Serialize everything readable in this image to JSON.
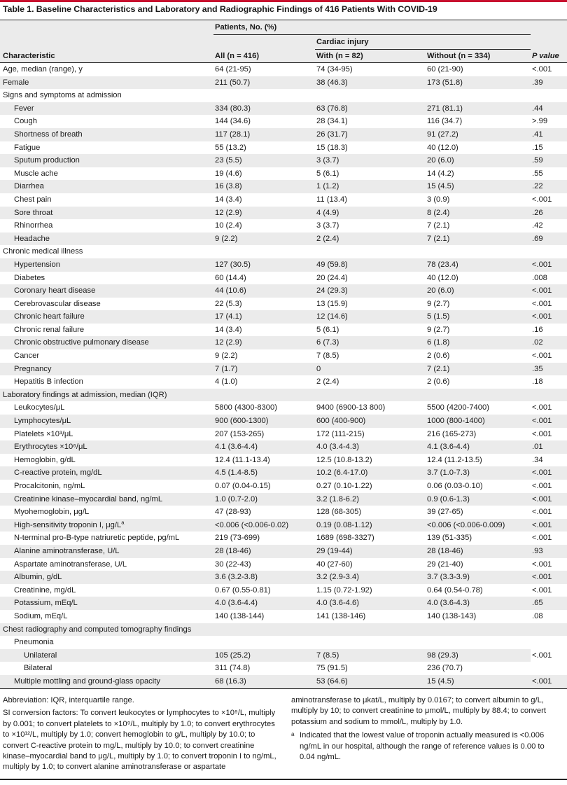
{
  "title": "Table 1. Baseline Characteristics and Laboratory and Radiographic Findings of 416 Patients With COVID-19",
  "header": {
    "patients": "Patients, No. (%)",
    "cardiac": "Cardiac injury",
    "characteristic": "Characteristic",
    "all": "All (n = 416)",
    "with": "With (n = 82)",
    "without": "Without (n = 334)",
    "p": "P value"
  },
  "rows": [
    {
      "label": "Age, median (range), y",
      "all": "64 (21-95)",
      "with": "74 (34-95)",
      "without": "60 (21-90)",
      "p": "<.001",
      "level": 0
    },
    {
      "label": "Female",
      "all": "211 (50.7)",
      "with": "38 (46.3)",
      "without": "173 (51.8)",
      "p": ".39",
      "level": 0
    },
    {
      "label": "Signs and symptoms at admission",
      "all": "",
      "with": "",
      "without": "",
      "p": "",
      "level": 0
    },
    {
      "label": "Fever",
      "all": "334 (80.3)",
      "with": "63 (76.8)",
      "without": "271 (81.1)",
      "p": ".44",
      "level": 1
    },
    {
      "label": "Cough",
      "all": "144 (34.6)",
      "with": "28 (34.1)",
      "without": "116 (34.7)",
      "p": ">.99",
      "level": 1
    },
    {
      "label": "Shortness of breath",
      "all": "117 (28.1)",
      "with": "26 (31.7)",
      "without": "91 (27.2)",
      "p": ".41",
      "level": 1
    },
    {
      "label": "Fatigue",
      "all": "55 (13.2)",
      "with": "15 (18.3)",
      "without": "40 (12.0)",
      "p": ".15",
      "level": 1
    },
    {
      "label": "Sputum production",
      "all": "23 (5.5)",
      "with": "3 (3.7)",
      "without": "20 (6.0)",
      "p": ".59",
      "level": 1
    },
    {
      "label": "Muscle ache",
      "all": "19 (4.6)",
      "with": "5 (6.1)",
      "without": "14 (4.2)",
      "p": ".55",
      "level": 1
    },
    {
      "label": "Diarrhea",
      "all": "16 (3.8)",
      "with": "1 (1.2)",
      "without": "15 (4.5)",
      "p": ".22",
      "level": 1
    },
    {
      "label": "Chest pain",
      "all": "14 (3.4)",
      "with": "11 (13.4)",
      "without": "3 (0.9)",
      "p": "<.001",
      "level": 1
    },
    {
      "label": "Sore throat",
      "all": "12 (2.9)",
      "with": "4 (4.9)",
      "without": "8 (2.4)",
      "p": ".26",
      "level": 1
    },
    {
      "label": "Rhinorrhea",
      "all": "10 (2.4)",
      "with": "3 (3.7)",
      "without": "7 (2.1)",
      "p": ".42",
      "level": 1
    },
    {
      "label": "Headache",
      "all": "9 (2.2)",
      "with": "2 (2.4)",
      "without": "7 (2.1)",
      "p": ".69",
      "level": 1
    },
    {
      "label": "Chronic medical illness",
      "all": "",
      "with": "",
      "without": "",
      "p": "",
      "level": 0
    },
    {
      "label": "Hypertension",
      "all": "127 (30.5)",
      "with": "49 (59.8)",
      "without": "78 (23.4)",
      "p": "<.001",
      "level": 1
    },
    {
      "label": "Diabetes",
      "all": "60 (14.4)",
      "with": "20 (24.4)",
      "without": "40 (12.0)",
      "p": ".008",
      "level": 1
    },
    {
      "label": "Coronary heart disease",
      "all": "44 (10.6)",
      "with": "24 (29.3)",
      "without": "20 (6.0)",
      "p": "<.001",
      "level": 1
    },
    {
      "label": "Cerebrovascular disease",
      "all": "22 (5.3)",
      "with": "13 (15.9)",
      "without": "9 (2.7)",
      "p": "<.001",
      "level": 1
    },
    {
      "label": "Chronic heart failure",
      "all": "17 (4.1)",
      "with": "12 (14.6)",
      "without": "5 (1.5)",
      "p": "<.001",
      "level": 1
    },
    {
      "label": "Chronic renal failure",
      "all": "14 (3.4)",
      "with": "5 (6.1)",
      "without": "9 (2.7)",
      "p": ".16",
      "level": 1
    },
    {
      "label": "Chronic obstructive pulmonary disease",
      "all": "12 (2.9)",
      "with": "6 (7.3)",
      "without": "6 (1.8)",
      "p": ".02",
      "level": 1
    },
    {
      "label": "Cancer",
      "all": "9 (2.2)",
      "with": "7 (8.5)",
      "without": "2 (0.6)",
      "p": "<.001",
      "level": 1
    },
    {
      "label": "Pregnancy",
      "all": "7 (1.7)",
      "with": "0",
      "without": "7 (2.1)",
      "p": ".35",
      "level": 1
    },
    {
      "label": "Hepatitis B infection",
      "all": "4 (1.0)",
      "with": "2 (2.4)",
      "without": "2 (0.6)",
      "p": ".18",
      "level": 1
    },
    {
      "label": "Laboratory findings at admission, median (IQR)",
      "all": "",
      "with": "",
      "without": "",
      "p": "",
      "level": 0
    },
    {
      "label": "Leukocytes/μL",
      "all": "5800 (4300-8300)",
      "with": "9400 (6900-13 800)",
      "without": "5500 (4200-7400)",
      "p": "<.001",
      "level": 1
    },
    {
      "label": "Lymphocytes/μL",
      "all": "900 (600-1300)",
      "with": "600 (400-900)",
      "without": "1000 (800-1400)",
      "p": "<.001",
      "level": 1
    },
    {
      "label": "Platelets ×10³/μL",
      "all": "207 (153-265)",
      "with": "172 (111-215)",
      "without": "216 (165-273)",
      "p": "<.001",
      "level": 1
    },
    {
      "label": "Erythrocytes ×10⁶/μL",
      "all": "4.1 (3.6-4.4)",
      "with": "4.0 (3.4-4.3)",
      "without": "4.1 (3.6-4.4)",
      "p": ".01",
      "level": 1
    },
    {
      "label": "Hemoglobin, g/dL",
      "all": "12.4 (11.1-13.4)",
      "with": "12.5 (10.8-13.2)",
      "without": "12.4 (11.2-13.5)",
      "p": ".34",
      "level": 1
    },
    {
      "label": "C-reactive protein, mg/dL",
      "all": "4.5 (1.4-8.5)",
      "with": "10.2 (6.4-17.0)",
      "without": "3.7 (1.0-7.3)",
      "p": "<.001",
      "level": 1
    },
    {
      "label": "Procalcitonin, ng/mL",
      "all": "0.07 (0.04-0.15)",
      "with": "0.27 (0.10-1.22)",
      "without": "0.06 (0.03-0.10)",
      "p": "<.001",
      "level": 1
    },
    {
      "label": "Creatinine kinase–myocardial band, ng/mL",
      "all": "1.0 (0.7-2.0)",
      "with": "3.2 (1.8-6.2)",
      "without": "0.9 (0.6-1.3)",
      "p": "<.001",
      "level": 1
    },
    {
      "label": "Myohemoglobin, μg/L",
      "all": "47 (28-93)",
      "with": "128 (68-305)",
      "without": "39 (27-65)",
      "p": "<.001",
      "level": 1
    },
    {
      "label": "High-sensitivity troponin I, μg/L",
      "all": "<0.006 (<0.006-0.02)",
      "with": "0.19 (0.08-1.12)",
      "without": "<0.006 (<0.006-0.009)",
      "p": "<.001",
      "level": 1,
      "sup": "a"
    },
    {
      "label": "N-terminal pro-B-type natriuretic peptide, pg/mL",
      "all": "219 (73-699)",
      "with": "1689 (698-3327)",
      "without": "139 (51-335)",
      "p": "<.001",
      "level": 1
    },
    {
      "label": "Alanine aminotransferase, U/L",
      "all": "28 (18-46)",
      "with": "29 (19-44)",
      "without": "28 (18-46)",
      "p": ".93",
      "level": 1
    },
    {
      "label": "Aspartate aminotransferase, U/L",
      "all": "30 (22-43)",
      "with": "40 (27-60)",
      "without": "29 (21-40)",
      "p": "<.001",
      "level": 1
    },
    {
      "label": "Albumin, g/dL",
      "all": "3.6 (3.2-3.8)",
      "with": "3.2 (2.9-3.4)",
      "without": "3.7 (3.3-3.9)",
      "p": "<.001",
      "level": 1
    },
    {
      "label": "Creatinine, mg/dL",
      "all": "0.67 (0.55-0.81)",
      "with": "1.15 (0.72-1.92)",
      "without": "0.64 (0.54-0.78)",
      "p": "<.001",
      "level": 1
    },
    {
      "label": "Potassium, mEq/L",
      "all": "4.0 (3.6-4.4)",
      "with": "4.0 (3.6-4.6)",
      "without": "4.0 (3.6-4.3)",
      "p": ".65",
      "level": 1
    },
    {
      "label": "Sodium, mEq/L",
      "all": "140 (138-144)",
      "with": "141 (138-146)",
      "without": "140 (138-143)",
      "p": ".08",
      "level": 1
    },
    {
      "label": "Chest radiography and computed tomography findings",
      "all": "",
      "with": "",
      "without": "",
      "p": "",
      "level": 0
    }
  ],
  "pneumonia": {
    "label": "Pneumonia",
    "unilateral": {
      "label": "Unilateral",
      "all": "105 (25.2)",
      "with": "7 (8.5)",
      "without": "98 (29.3)"
    },
    "bilateral": {
      "label": "Bilateral",
      "all": "311 (74.8)",
      "with": "75 (91.5)",
      "without": "236 (70.7)"
    },
    "p": "<.001"
  },
  "mottling": {
    "label": "Multiple mottling and ground-glass opacity",
    "all": "68 (16.3)",
    "with": "53 (64.6)",
    "without": "15 (4.5)",
    "p": "<.001"
  },
  "footer": {
    "abbrev": "Abbreviation: IQR, interquartile range.",
    "si_left": "SI conversion factors: To convert leukocytes or lymphocytes to ×10⁹/L, multiply by 0.001; to convert platelets to ×10⁹/L, multiply by 1.0; to convert erythrocytes to ×10¹²/L, multiply by 1.0; convert hemoglobin to g/L, multiply by 10.0; to convert C-reactive protein to mg/L, multiply by 10.0; to convert creatinine kinase–myocardial band to μg/L, multiply by 1.0; to convert troponin I to ng/mL, multiply by 1.0; to convert alanine aminotransferase or aspartate",
    "si_right": "aminotransferase to μkat/L, multiply by 0.0167; to convert albumin to g/L, multiply by 10; to convert creatinine to μmol/L, multiply by 88.4; to convert potassium and sodium to mmol/L, multiply by 1.0.",
    "note_mark": "a",
    "note": "Indicated that the lowest value of troponin actually measured is <0.006 ng/mL in our hospital, although the range of reference values is 0.00 to 0.04 ng/mL."
  }
}
